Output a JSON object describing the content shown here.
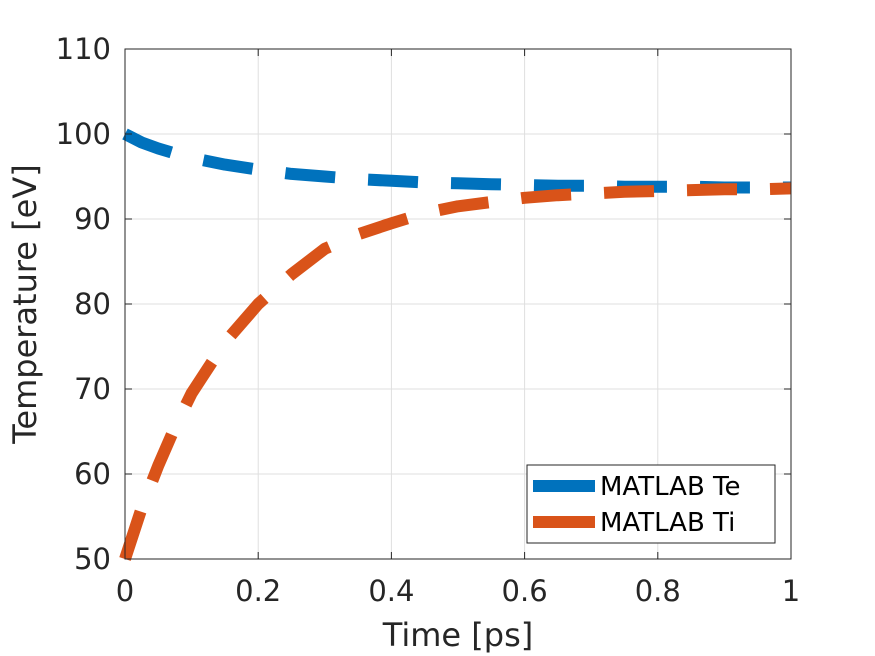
{
  "chart_data": {
    "type": "line",
    "title": "",
    "xlabel": "Time [ps]",
    "ylabel": "Temperature [eV]",
    "xlim": [
      0,
      1
    ],
    "ylim": [
      50,
      110
    ],
    "xticks": [
      0,
      0.2,
      0.4,
      0.6,
      0.8,
      1
    ],
    "xtick_labels": [
      "0",
      "0.2",
      "0.4",
      "0.6",
      "0.8",
      "1"
    ],
    "yticks": [
      50,
      60,
      70,
      80,
      90,
      100,
      110
    ],
    "ytick_labels": [
      "50",
      "60",
      "70",
      "80",
      "90",
      "100",
      "110"
    ],
    "grid": true,
    "legend_position": "bottom-right",
    "x": [
      0,
      0.025,
      0.05,
      0.075,
      0.1,
      0.15,
      0.2,
      0.25,
      0.3,
      0.35,
      0.4,
      0.45,
      0.5,
      0.55,
      0.6,
      0.65,
      0.7,
      0.75,
      0.8,
      0.85,
      0.9,
      0.95,
      1.0
    ],
    "series": [
      {
        "name": "MATLAB Te",
        "color": "#0072BD",
        "line_style": "dashed",
        "values": [
          100.0,
          99.0,
          98.3,
          97.7,
          97.2,
          96.4,
          95.8,
          95.3,
          95.0,
          94.7,
          94.5,
          94.3,
          94.2,
          94.1,
          94.0,
          93.9,
          93.9,
          93.8,
          93.8,
          93.8,
          93.7,
          93.7,
          93.7
        ]
      },
      {
        "name": "MATLAB Ti",
        "color": "#D95319",
        "line_style": "dashed",
        "values": [
          50.0,
          56.0,
          61.0,
          65.5,
          69.5,
          75.5,
          80.0,
          83.5,
          86.5,
          88.2,
          89.5,
          90.7,
          91.5,
          92.0,
          92.5,
          92.8,
          93.0,
          93.2,
          93.3,
          93.4,
          93.5,
          93.5,
          93.6
        ]
      }
    ]
  }
}
